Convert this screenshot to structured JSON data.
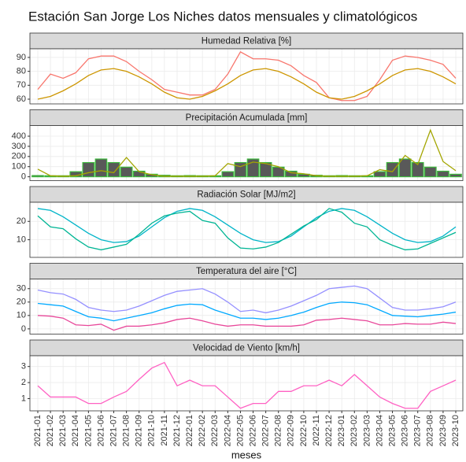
{
  "title": "Estación San Jorge Los Niches datos mensuales y climatológicos",
  "x_label": "meses",
  "chart_data": [
    {
      "type": "line",
      "title": "Humedad Relativa [%]",
      "x": [
        "2021-01",
        "2021-02",
        "2021-03",
        "2021-04",
        "2021-05",
        "2021-06",
        "2021-07",
        "2021-08",
        "2021-09",
        "2021-10",
        "2021-11",
        "2021-12",
        "2022-01",
        "2022-02",
        "2022-03",
        "2022-04",
        "2022-05",
        "2022-06",
        "2022-07",
        "2022-08",
        "2022-09",
        "2022-10",
        "2022-11",
        "2022-12",
        "2023-01",
        "2023-02",
        "2023-03",
        "2023-04",
        "2023-05",
        "2023-06",
        "2023-07",
        "2023-08",
        "2023-09",
        "2023-10"
      ],
      "ylim": [
        56.6,
        96.2
      ],
      "yticks": [
        60,
        70,
        80,
        90
      ],
      "grid": true,
      "series": [
        {
          "color": "#F8766D",
          "values": [
            67,
            78,
            75,
            79,
            89,
            91,
            91,
            87,
            80,
            74,
            67,
            65,
            63,
            63,
            67,
            78,
            94,
            89,
            89,
            88,
            84,
            77,
            72,
            61,
            59,
            59,
            62,
            74,
            88,
            91,
            90,
            88,
            85,
            75
          ]
        },
        {
          "color": "#CD9600",
          "values": [
            60,
            62,
            66,
            71,
            77,
            81,
            82,
            80,
            76,
            71,
            65,
            61,
            60,
            62,
            66,
            71,
            77,
            81,
            82,
            80,
            76,
            71,
            65,
            61,
            60,
            62,
            66,
            71,
            77,
            81,
            82,
            80,
            76,
            71
          ]
        }
      ]
    },
    {
      "type": "line",
      "title": "Precipitación Acumulada [mm]",
      "x": [
        "2021-01",
        "2021-02",
        "2021-03",
        "2021-04",
        "2021-05",
        "2021-06",
        "2021-07",
        "2021-08",
        "2021-09",
        "2021-10",
        "2021-11",
        "2021-12",
        "2022-01",
        "2022-02",
        "2022-03",
        "2022-04",
        "2022-05",
        "2022-06",
        "2022-07",
        "2022-08",
        "2022-09",
        "2022-10",
        "2022-11",
        "2022-12",
        "2023-01",
        "2023-02",
        "2023-03",
        "2023-04",
        "2023-05",
        "2023-06",
        "2023-07",
        "2023-08",
        "2023-09",
        "2023-10"
      ],
      "ylim": [
        -38,
        505
      ],
      "yticks": [
        0,
        100,
        200,
        300,
        400
      ],
      "grid": true,
      "series": [
        {
          "type": "bar",
          "color": "#595959",
          "stroke": "#3DB83D",
          "values": [
            12,
            10,
            10,
            50,
            140,
            175,
            140,
            95,
            55,
            25,
            15,
            10,
            12,
            10,
            10,
            50,
            140,
            175,
            140,
            95,
            55,
            25,
            15,
            10,
            12,
            10,
            10,
            50,
            140,
            175,
            140,
            95,
            55,
            25
          ]
        },
        {
          "type": "line",
          "color": "#A3A500",
          "values": [
            75,
            10,
            5,
            10,
            40,
            60,
            40,
            190,
            50,
            20,
            5,
            5,
            5,
            5,
            10,
            130,
            100,
            145,
            130,
            100,
            40,
            30,
            10,
            5,
            5,
            5,
            10,
            70,
            50,
            210,
            120,
            460,
            150,
            60
          ]
        }
      ]
    },
    {
      "type": "line",
      "title": "Radiación Solar [MJ/m2]",
      "x": [
        "2021-01",
        "2021-02",
        "2021-03",
        "2021-04",
        "2021-05",
        "2021-06",
        "2021-07",
        "2021-08",
        "2021-09",
        "2021-10",
        "2021-11",
        "2021-12",
        "2022-01",
        "2022-02",
        "2022-03",
        "2022-04",
        "2022-05",
        "2022-06",
        "2022-07",
        "2022-08",
        "2022-09",
        "2022-10",
        "2022-11",
        "2022-12",
        "2023-01",
        "2023-02",
        "2023-03",
        "2023-04",
        "2023-05",
        "2023-06",
        "2023-07",
        "2023-08",
        "2023-09",
        "2023-10"
      ],
      "ylim": [
        0.4,
        30.4
      ],
      "yticks": [
        10,
        20
      ],
      "grid": true,
      "series": [
        {
          "color": "#00B4C8",
          "values": [
            27,
            26,
            22.5,
            18,
            13.5,
            10,
            8.5,
            9,
            12,
            17,
            22,
            25.5,
            27,
            26,
            22.5,
            18,
            13.5,
            10,
            8.5,
            9,
            12,
            17,
            22,
            25.5,
            27,
            26,
            22.5,
            18,
            13.5,
            10,
            8.5,
            9,
            12,
            17
          ]
        },
        {
          "color": "#00B594",
          "values": [
            23,
            17,
            16,
            10.5,
            6,
            4.5,
            6,
            7.5,
            13,
            19,
            23,
            24.5,
            25.5,
            20.5,
            19,
            11,
            5.5,
            5,
            6,
            8.5,
            13,
            17.5,
            21,
            27,
            25,
            19,
            17,
            10,
            7,
            4.5,
            5,
            8,
            11,
            14
          ]
        }
      ]
    },
    {
      "type": "line",
      "title": "Temperatura del aire [°C]",
      "x": [
        "2021-01",
        "2021-02",
        "2021-03",
        "2021-04",
        "2021-05",
        "2021-06",
        "2021-07",
        "2021-08",
        "2021-09",
        "2021-10",
        "2021-11",
        "2021-12",
        "2022-01",
        "2022-02",
        "2022-03",
        "2022-04",
        "2022-05",
        "2022-06",
        "2022-07",
        "2022-08",
        "2022-09",
        "2022-10",
        "2022-11",
        "2022-12",
        "2023-01",
        "2023-02",
        "2023-03",
        "2023-04",
        "2023-05",
        "2023-06",
        "2023-07",
        "2023-08",
        "2023-09",
        "2023-10"
      ],
      "ylim": [
        -3.9,
        37.2
      ],
      "yticks": [
        0,
        10,
        20,
        30
      ],
      "grid": true,
      "series": [
        {
          "color": "#9590FF",
          "values": [
            29,
            27,
            26,
            22,
            16,
            14,
            13,
            14,
            17,
            21,
            25,
            28,
            29,
            30,
            26,
            20,
            13,
            14,
            12,
            14,
            17,
            21,
            25,
            30,
            31,
            32,
            30,
            23,
            16,
            14,
            14,
            15,
            16.5,
            20
          ]
        },
        {
          "color": "#00A9FF",
          "values": [
            19,
            18,
            17,
            13,
            9,
            8,
            6,
            8,
            10,
            12,
            15,
            17.5,
            18.5,
            18,
            14,
            11,
            8,
            8,
            7,
            8,
            10,
            12.5,
            16,
            19,
            20,
            19.5,
            18,
            14,
            10,
            9.5,
            9,
            10,
            11,
            12.5
          ]
        },
        {
          "color": "#E8489A",
          "values": [
            10,
            9.5,
            8,
            3,
            2.5,
            3.5,
            -1,
            2,
            2,
            3,
            4.5,
            7,
            8,
            6,
            3.5,
            2,
            3,
            3,
            2,
            2,
            2,
            3,
            6.5,
            7,
            8,
            7,
            6,
            3,
            3,
            4,
            3.5,
            3.5,
            5,
            4
          ]
        }
      ]
    },
    {
      "type": "line",
      "title": "Velocidad de Viento [km/h]",
      "x": [
        "2021-01",
        "2021-02",
        "2021-03",
        "2021-04",
        "2021-05",
        "2021-06",
        "2021-07",
        "2021-08",
        "2021-09",
        "2021-10",
        "2021-11",
        "2021-12",
        "2022-01",
        "2022-02",
        "2022-03",
        "2022-04",
        "2022-05",
        "2022-06",
        "2022-07",
        "2022-08",
        "2022-09",
        "2022-10",
        "2022-11",
        "2022-12",
        "2023-01",
        "2023-02",
        "2023-03",
        "2023-04",
        "2023-05",
        "2023-06",
        "2023-07",
        "2023-08",
        "2023-09",
        "2023-10"
      ],
      "ylim": [
        0.24,
        3.67
      ],
      "yticks": [
        1,
        2,
        3
      ],
      "grid": true,
      "series": [
        {
          "color": "#FF61C3",
          "values": [
            1.8,
            1.1,
            1.1,
            1.1,
            0.7,
            0.7,
            1.1,
            1.45,
            2.2,
            2.9,
            3.25,
            1.8,
            2.15,
            1.8,
            1.8,
            1.1,
            0.4,
            0.7,
            0.7,
            1.45,
            1.45,
            1.8,
            1.8,
            2.15,
            1.8,
            2.5,
            1.8,
            1.1,
            0.7,
            0.4,
            0.4,
            1.45,
            1.8,
            2.15
          ]
        }
      ]
    }
  ]
}
